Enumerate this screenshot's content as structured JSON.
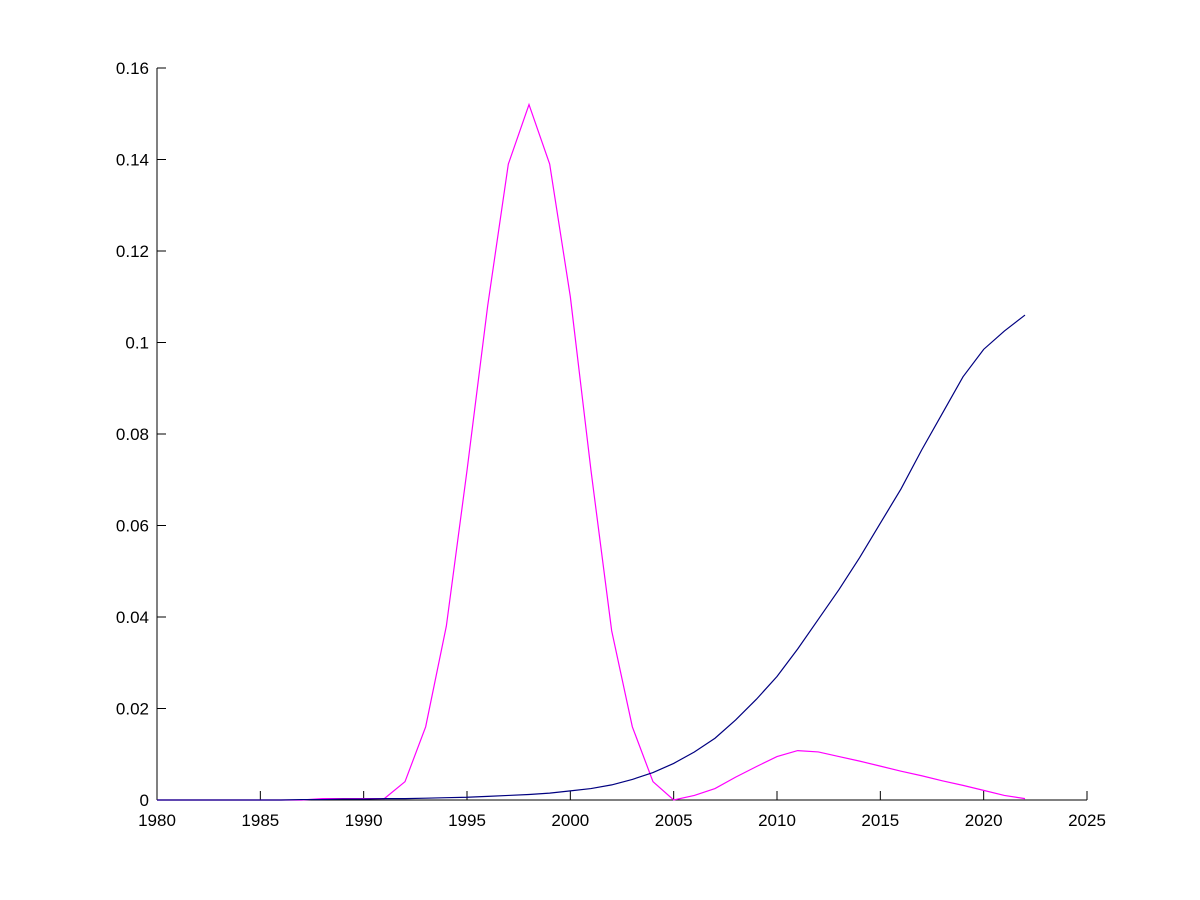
{
  "chart_data": {
    "type": "line",
    "x": [
      1980,
      1981,
      1982,
      1983,
      1984,
      1985,
      1986,
      1987,
      1988,
      1989,
      1990,
      1991,
      1992,
      1993,
      1994,
      1995,
      1996,
      1997,
      1998,
      1999,
      2000,
      2001,
      2002,
      2003,
      2004,
      2005,
      2006,
      2007,
      2008,
      2009,
      2010,
      2011,
      2012,
      2013,
      2014,
      2015,
      2016,
      2017,
      2018,
      2019,
      2020,
      2021,
      2022
    ],
    "series": [
      {
        "color": "#ff00ff",
        "values": [
          0,
          0,
          0,
          0,
          0,
          0,
          0,
          0,
          0.0003,
          0.0003,
          0.0003,
          0.0003,
          0.004,
          0.016,
          0.038,
          0.072,
          0.108,
          0.139,
          0.152,
          0.139,
          0.11,
          0.072,
          0.037,
          0.016,
          0.004,
          0,
          0.001,
          0.0025,
          0.005,
          0.0073,
          0.0095,
          0.0108,
          0.0105,
          0.0095,
          0.0085,
          0.0074,
          0.0063,
          0.0053,
          0.0042,
          0.0032,
          0.0021,
          0.001,
          0.0003
        ]
      },
      {
        "color": "#000080",
        "values": [
          0,
          0,
          0,
          0,
          0,
          0,
          0,
          0.0001,
          0.0001,
          0.0002,
          0.0002,
          0.0003,
          0.0003,
          0.0004,
          0.0005,
          0.0006,
          0.0008,
          0.001,
          0.0012,
          0.0015,
          0.002,
          0.0025,
          0.0033,
          0.0045,
          0.006,
          0.008,
          0.0105,
          0.0135,
          0.0175,
          0.022,
          0.027,
          0.033,
          0.0395,
          0.046,
          0.053,
          0.0605,
          0.068,
          0.0765,
          0.0845,
          0.0925,
          0.0985,
          0.1025,
          0.106
        ]
      }
    ],
    "xlim": [
      1980,
      2025
    ],
    "xticks": [
      1980,
      1985,
      1990,
      1995,
      2000,
      2005,
      2010,
      2015,
      2020,
      2025
    ],
    "ylim": [
      0,
      0.16
    ],
    "yticks": [
      0,
      0.02,
      0.04,
      0.06,
      0.08,
      0.1,
      0.12,
      0.14,
      0.16
    ]
  }
}
